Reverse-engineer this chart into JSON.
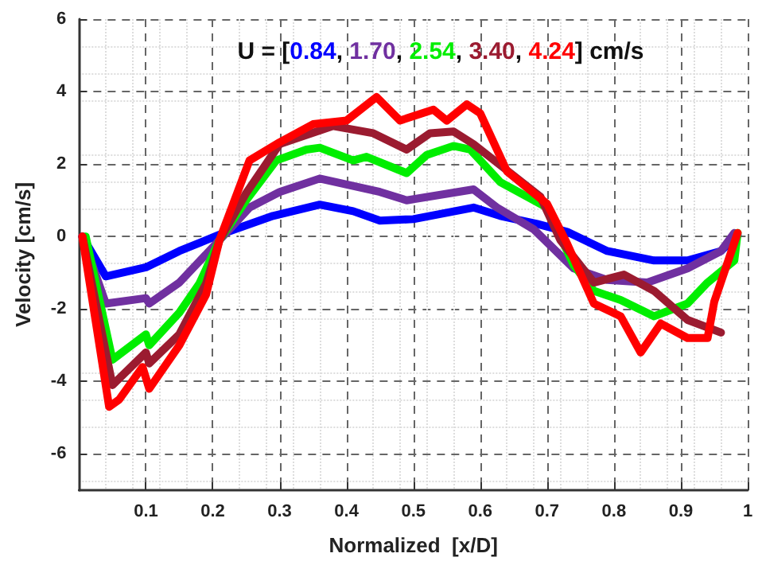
{
  "chart_data": {
    "type": "line",
    "title": "U = [0.84, 1.70, 2.54, 3.40, 4.24] cm/s",
    "xlabel": "Normalized  [x/D]",
    "ylabel": "Velocity [cm/s]",
    "xlim": [
      0,
      1
    ],
    "xticks": [
      0.1,
      0.2,
      0.3,
      0.4,
      0.5,
      0.6,
      0.7,
      0.8,
      0.9,
      1
    ],
    "ylim": [
      -7,
      6
    ],
    "yticks": [
      -6,
      -4,
      -2,
      0,
      2,
      4,
      6
    ],
    "grid": true,
    "marker": "none",
    "line_style": "solid",
    "series": [
      {
        "color": "#0000ff",
        "x": [
          0.005,
          0.04,
          0.1,
          0.15,
          0.21,
          0.29,
          0.36,
          0.41,
          0.45,
          0.5,
          0.59,
          0.63,
          0.685,
          0.73,
          0.79,
          0.86,
          0.91,
          0.96,
          0.985
        ],
        "values": [
          0,
          -1.1,
          -0.85,
          -0.4,
          0.05,
          0.57,
          0.88,
          0.7,
          0.44,
          0.48,
          0.8,
          0.57,
          0.35,
          0.13,
          -0.4,
          -0.66,
          -0.66,
          -0.4,
          0.04
        ]
      },
      {
        "color": "#7030a0",
        "x": [
          0.005,
          0.04,
          0.1,
          0.105,
          0.15,
          0.21,
          0.255,
          0.3,
          0.36,
          0.45,
          0.49,
          0.59,
          0.625,
          0.68,
          0.74,
          0.79,
          0.85,
          0.91,
          0.96,
          0.98
        ],
        "values": [
          0,
          -1.85,
          -1.7,
          -1.85,
          -1.27,
          -0.1,
          0.8,
          1.23,
          1.6,
          1.23,
          1.0,
          1.3,
          0.8,
          0.2,
          -0.88,
          -1.2,
          -1.27,
          -0.88,
          -0.4,
          0.1
        ]
      },
      {
        "color": "#00ee00",
        "x": [
          0.01,
          0.05,
          0.1,
          0.105,
          0.15,
          0.18,
          0.21,
          0.25,
          0.295,
          0.34,
          0.36,
          0.41,
          0.43,
          0.49,
          0.52,
          0.56,
          0.585,
          0.63,
          0.7,
          0.74,
          0.77,
          0.81,
          0.86,
          0.91,
          0.94,
          0.98,
          0.985
        ],
        "values": [
          0,
          -3.4,
          -2.7,
          -3.0,
          -2.1,
          -1.3,
          -0.1,
          1.0,
          2.1,
          2.4,
          2.45,
          2.1,
          2.2,
          1.75,
          2.25,
          2.5,
          2.4,
          1.5,
          0.8,
          -0.8,
          -1.5,
          -1.75,
          -2.2,
          -1.85,
          -1.27,
          -0.66,
          0.1
        ]
      },
      {
        "color": "#9b1b30",
        "x": [
          0.005,
          0.05,
          0.1,
          0.105,
          0.15,
          0.19,
          0.21,
          0.25,
          0.3,
          0.38,
          0.44,
          0.49,
          0.525,
          0.56,
          0.59,
          0.69,
          0.72,
          0.77,
          0.815,
          0.86,
          0.91,
          0.96
        ],
        "values": [
          0,
          -4.1,
          -3.2,
          -3.5,
          -2.7,
          -1.3,
          -0.1,
          1.2,
          2.55,
          3.05,
          2.85,
          2.4,
          2.85,
          2.9,
          2.55,
          1.1,
          -0.1,
          -1.27,
          -1.05,
          -1.5,
          -2.3,
          -2.65
        ]
      },
      {
        "color": "#ff0000",
        "x": [
          0.005,
          0.045,
          0.06,
          0.095,
          0.105,
          0.15,
          0.19,
          0.21,
          0.255,
          0.3,
          0.35,
          0.4,
          0.445,
          0.48,
          0.53,
          0.55,
          0.58,
          0.6,
          0.64,
          0.7,
          0.73,
          0.77,
          0.81,
          0.84,
          0.87,
          0.91,
          0.94,
          0.95,
          0.985
        ],
        "values": [
          0,
          -4.7,
          -4.5,
          -3.6,
          -4.2,
          -3.0,
          -1.6,
          -0.1,
          2.1,
          2.6,
          3.1,
          3.2,
          3.85,
          3.2,
          3.5,
          3.2,
          3.65,
          3.4,
          1.8,
          0.9,
          -0.2,
          -1.85,
          -2.2,
          -3.2,
          -2.4,
          -2.8,
          -2.8,
          -1.8,
          0.1
        ]
      }
    ]
  }
}
